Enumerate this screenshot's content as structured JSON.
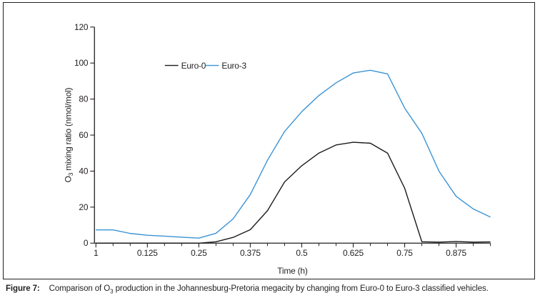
{
  "figure": {
    "caption_label": "Figure 7:",
    "caption_parts": {
      "pre": "Comparison of O",
      "sub": "3",
      "post": " production in the Johannesburg-Pretoria megacity by changing from Euro-0 to Euro-3 classified vehicles."
    }
  },
  "chart_data": {
    "type": "line",
    "title": "",
    "xlabel": "Time (h)",
    "ylabel_parts": {
      "pre": "O",
      "sub": "3",
      "post": " mixing ratio (nmol/mol)"
    },
    "ylim": [
      0,
      120
    ],
    "yticks": [
      0,
      20,
      40,
      60,
      80,
      100,
      120
    ],
    "x_tick_labels": [
      "1",
      "0.125",
      "0.25",
      "0.375",
      "0.5",
      "0.625",
      "0.75",
      "0.875"
    ],
    "x_tick_hours": [
      0,
      3,
      6,
      9,
      12,
      15,
      18,
      21
    ],
    "x_hours": [
      0,
      1,
      2,
      3,
      4,
      5,
      6,
      7,
      8,
      9,
      10,
      11,
      12,
      13,
      14,
      15,
      16,
      17,
      18,
      19,
      20,
      21,
      22,
      23
    ],
    "grid": false,
    "legend_position": "inside-top-left",
    "axis_color": "#231f20",
    "series": [
      {
        "name": "Euro-0",
        "color": "#1b1b1b",
        "values": [
          0,
          0,
          0,
          0,
          0,
          0,
          0,
          0.8,
          3.2,
          7.5,
          18,
          34,
          43,
          50,
          54.5,
          56,
          55.5,
          50,
          30.5,
          0.8,
          0.6,
          0.9,
          0.6,
          0.7
        ]
      },
      {
        "name": "Euro-3",
        "color": "#3b93d4",
        "values": [
          7.4,
          7.4,
          5.4,
          4.4,
          3.9,
          3.3,
          2.8,
          5.5,
          13.5,
          27,
          46,
          62,
          73,
          82,
          89,
          94.5,
          96,
          94,
          75,
          61,
          40,
          26,
          19,
          14.5
        ]
      }
    ]
  }
}
